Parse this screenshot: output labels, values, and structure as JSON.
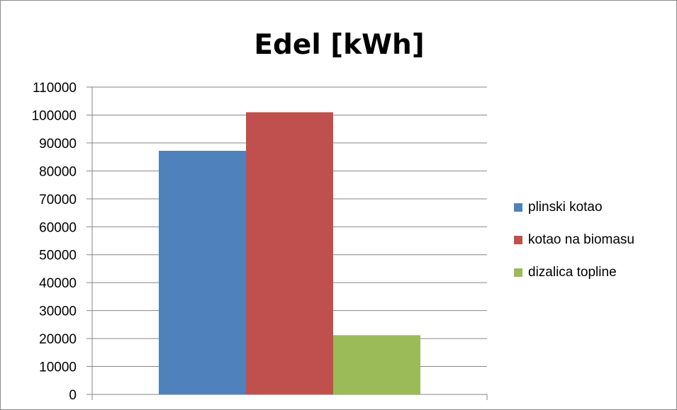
{
  "chart_data": {
    "type": "bar",
    "title": "Edel [kWh]",
    "xlabel": "",
    "ylabel": "",
    "categories": [
      ""
    ],
    "series": [
      {
        "name": "plinski kotao",
        "color": "#4f81bd",
        "values": [
          87200
        ]
      },
      {
        "name": "kotao na biomasu",
        "color": "#c0504d",
        "values": [
          101000
        ]
      },
      {
        "name": "dizalica topline",
        "color": "#9bbb59",
        "values": [
          21200
        ]
      }
    ],
    "ylim": [
      0,
      110000
    ],
    "yticks": [
      "0",
      "10000",
      "20000",
      "30000",
      "40000",
      "50000",
      "60000",
      "70000",
      "80000",
      "90000",
      "100000",
      "110000"
    ],
    "grid": true,
    "legend_position": "right"
  }
}
